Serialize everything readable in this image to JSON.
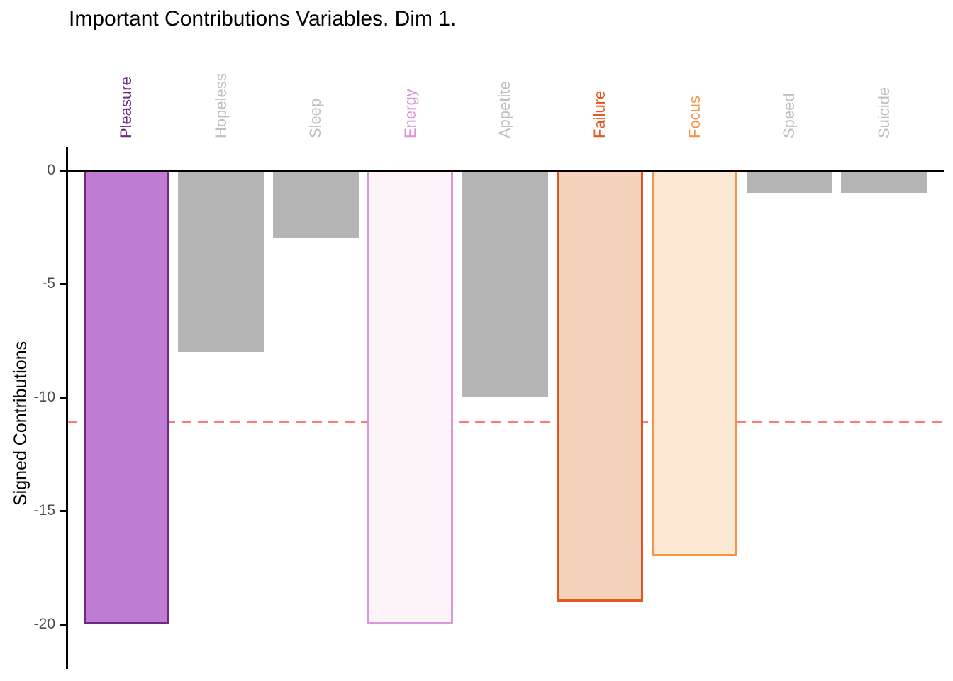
{
  "chart_data": {
    "type": "bar",
    "title": "Important Contributions Variables. Dim 1.",
    "ylabel": "Signed Contributions",
    "xlabel": "",
    "orientation": "vertical-negative",
    "grid": false,
    "legend": "none",
    "categories": [
      "Pleasure",
      "Hopeless",
      "Sleep",
      "Energy",
      "Appetite",
      "Failure",
      "Focus",
      "Speed",
      "Suicide"
    ],
    "values": [
      -20,
      -8,
      -3,
      -20,
      -10,
      -19,
      -17,
      -1,
      -1
    ],
    "ylim": [
      -22,
      0.6
    ],
    "yticks": [
      0,
      -5,
      -10,
      -15,
      -20
    ],
    "ytick_labels": [
      "0",
      "-5",
      "-10",
      "-15",
      "-20"
    ],
    "reference_line": {
      "value": -11.1,
      "style": "dashed",
      "color": "#FB7C70"
    },
    "bar_styles": [
      {
        "category": "Pleasure",
        "fill": "#C07BD2",
        "stroke": "#6C2B7E",
        "label_color": "#6C2B7E"
      },
      {
        "category": "Hopeless",
        "fill": "#B4B4B4",
        "stroke": "none",
        "label_color": "#BFBFBF"
      },
      {
        "category": "Sleep",
        "fill": "#B4B4B4",
        "stroke": "none",
        "label_color": "#BFBFBF"
      },
      {
        "category": "Energy",
        "fill": "#FDF4FA",
        "stroke": "#DC96DC",
        "label_color": "#DC96DC"
      },
      {
        "category": "Appetite",
        "fill": "#B4B4B4",
        "stroke": "none",
        "label_color": "#BFBFBF"
      },
      {
        "category": "Failure",
        "fill": "#F6D1BC",
        "stroke": "#E4551F",
        "label_color": "#E4551F"
      },
      {
        "category": "Focus",
        "fill": "#FCE8D2",
        "stroke": "#F79346",
        "label_color": "#F79346"
      },
      {
        "category": "Speed",
        "fill": "#B4B4B4",
        "stroke": "none",
        "label_color": "#BFBFBF"
      },
      {
        "category": "Suicide",
        "fill": "#B4B4B4",
        "stroke": "none",
        "label_color": "#BFBFBF"
      }
    ],
    "axis_color": "#000000",
    "tick_label_color": "#4d4d4d",
    "title_color": "#000000"
  }
}
